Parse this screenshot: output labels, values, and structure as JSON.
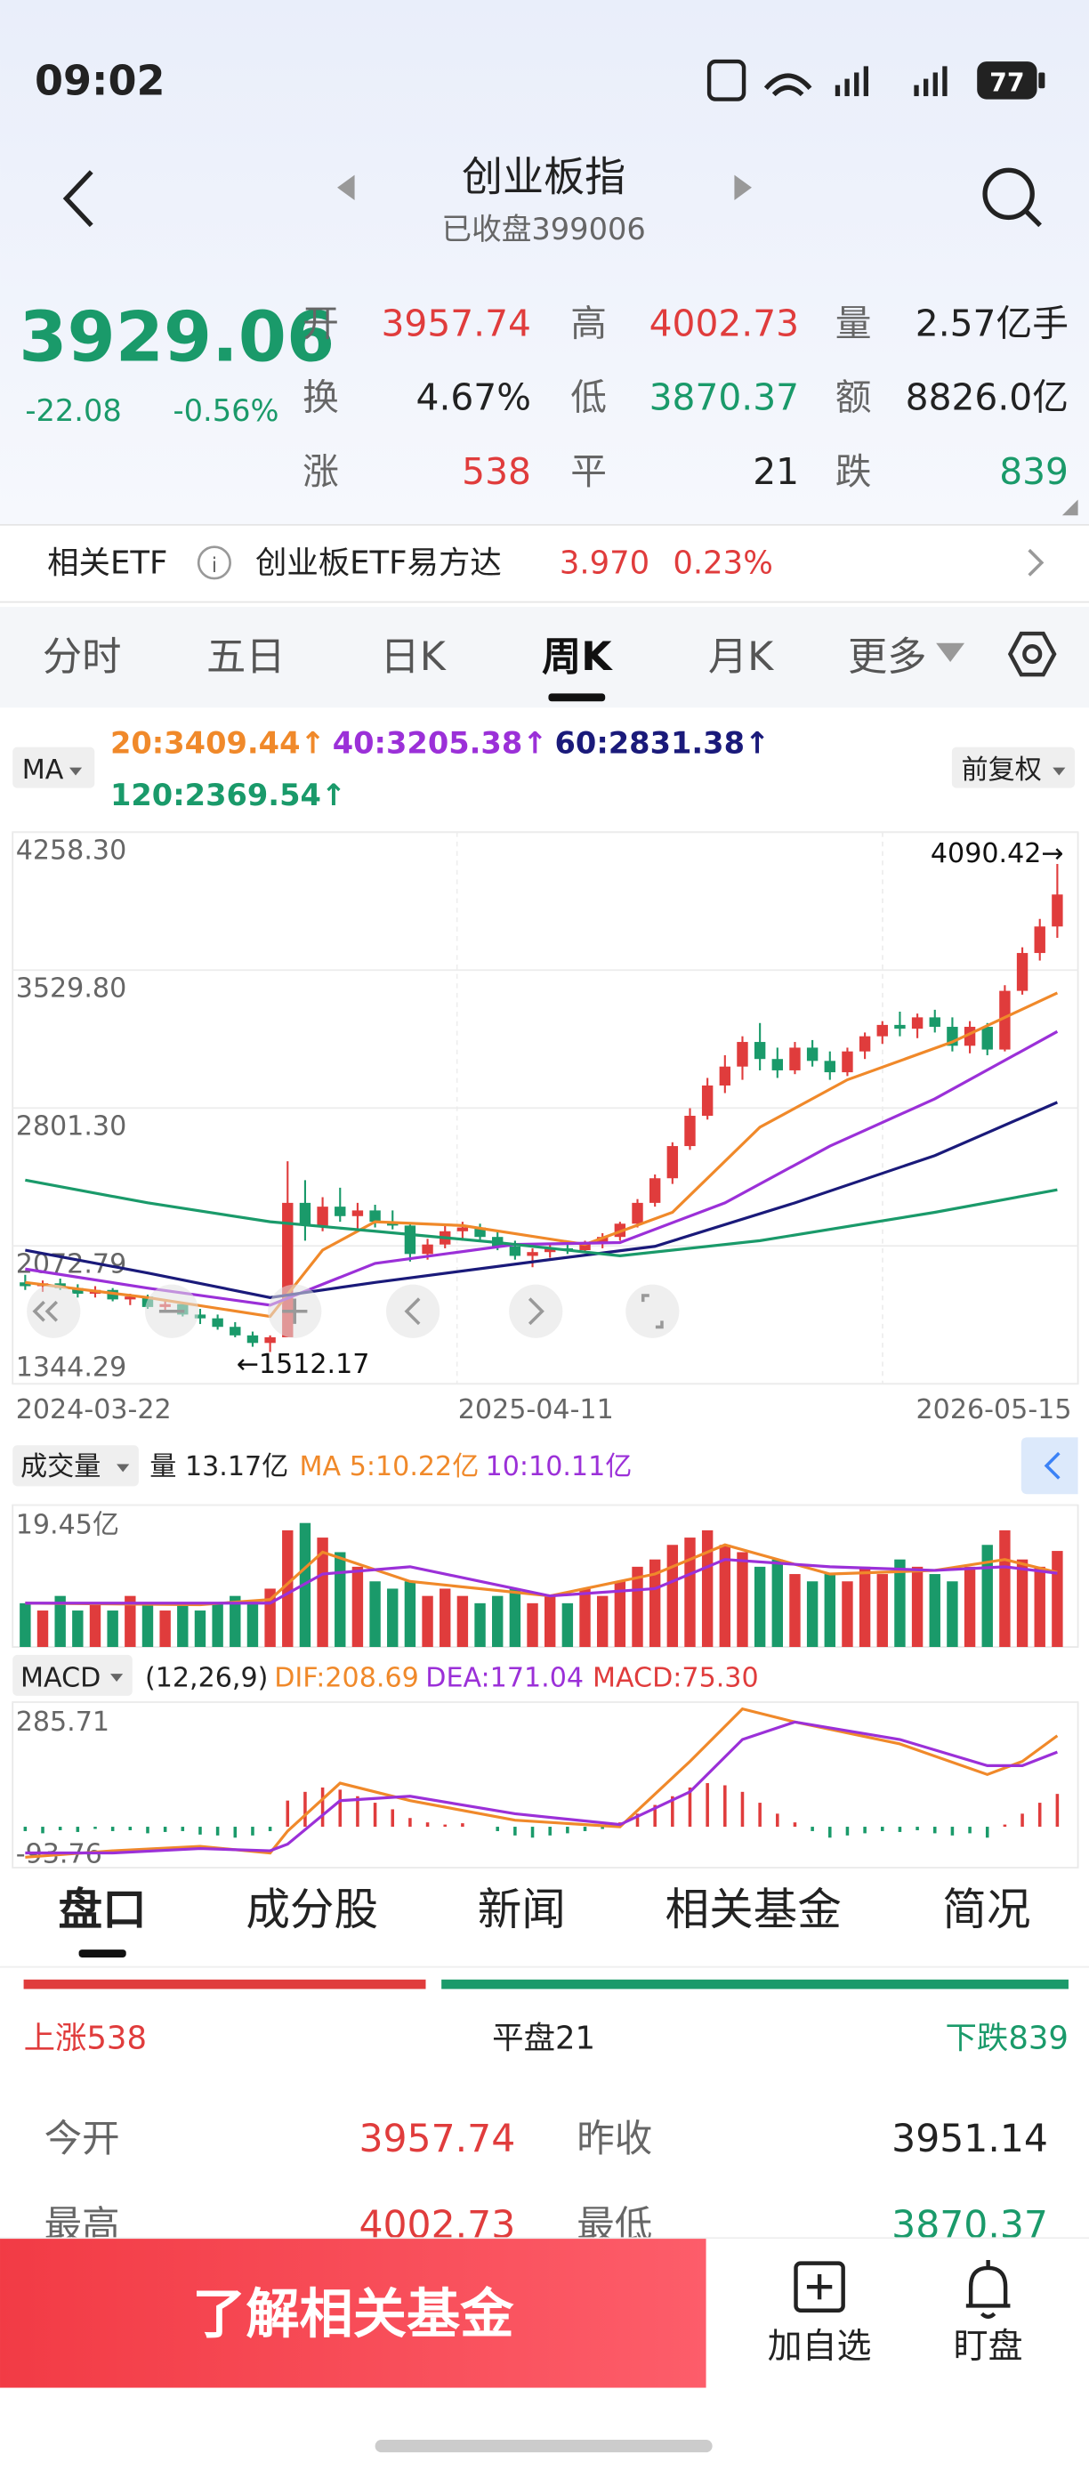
{
  "status": {
    "time": "09:02",
    "battery": "77"
  },
  "header": {
    "title": "创业板指",
    "subtitle": "已收盘399006"
  },
  "quote": {
    "price": "3929.06",
    "change": "-22.08",
    "change_pct": "-0.56%",
    "color": "#1a9a6a",
    "stats": [
      {
        "label": "开",
        "value": "3957.74",
        "color": "#e03c3c"
      },
      {
        "label": "高",
        "value": "4002.73",
        "color": "#e03c3c"
      },
      {
        "label": "量",
        "value": "2.57亿手",
        "color": "#222222"
      },
      {
        "label": "换",
        "value": "4.67%",
        "color": "#222222"
      },
      {
        "label": "低",
        "value": "3870.37",
        "color": "#1a9a6a"
      },
      {
        "label": "额",
        "value": "8826.0亿",
        "color": "#222222"
      },
      {
        "label": "涨",
        "value": "538",
        "color": "#e03c3c"
      },
      {
        "label": "平",
        "value": "21",
        "color": "#222222"
      },
      {
        "label": "跌",
        "value": "839",
        "color": "#1a9a6a"
      }
    ]
  },
  "etf": {
    "label": "相关ETF",
    "name": "创业板ETF易方达",
    "price": "3.970",
    "change_pct": "0.23%"
  },
  "period_tabs": {
    "items": [
      "分时",
      "五日",
      "日K",
      "周K",
      "月K",
      "更多"
    ],
    "active": 3
  },
  "chart_data": [
    {
      "type": "candlestick",
      "indicator": "MA",
      "adjustment": "前复权",
      "ylim": [
        1344.29,
        4258.3
      ],
      "yticks": [
        {
          "value": 4258.3,
          "label": "4258.30"
        },
        {
          "value": 3529.8,
          "label": "3529.80"
        },
        {
          "value": 2801.3,
          "label": "2801.30"
        },
        {
          "value": 2072.79,
          "label": "2072.79"
        },
        {
          "value": 1344.29,
          "label": "1344.29"
        }
      ],
      "x_labels": [
        "2024-03-22",
        "2025-04-11",
        "2026-05-15"
      ],
      "annotations": [
        "4090.42→",
        "←1512.17"
      ],
      "up_color": "#e03c3c",
      "down_color": "#1a9a6a",
      "candles": [
        [
          1880,
          1920,
          1840,
          1860
        ],
        [
          1860,
          1890,
          1830,
          1875
        ],
        [
          1875,
          1900,
          1840,
          1850
        ],
        [
          1850,
          1870,
          1800,
          1820
        ],
        [
          1820,
          1860,
          1800,
          1840
        ],
        [
          1840,
          1850,
          1780,
          1790
        ],
        [
          1790,
          1820,
          1760,
          1805
        ],
        [
          1805,
          1815,
          1740,
          1750
        ],
        [
          1750,
          1780,
          1720,
          1765
        ],
        [
          1765,
          1770,
          1700,
          1710
        ],
        [
          1710,
          1740,
          1660,
          1690
        ],
        [
          1690,
          1710,
          1630,
          1645
        ],
        [
          1645,
          1670,
          1590,
          1600
        ],
        [
          1600,
          1620,
          1540,
          1560
        ],
        [
          1560,
          1600,
          1512.17,
          1590
        ],
        [
          1590,
          2520,
          1590,
          2300
        ],
        [
          2300,
          2420,
          2100,
          2180
        ],
        [
          2180,
          2330,
          2150,
          2280
        ],
        [
          2280,
          2380,
          2200,
          2230
        ],
        [
          2230,
          2300,
          2150,
          2260
        ],
        [
          2260,
          2290,
          2170,
          2200
        ],
        [
          2200,
          2260,
          2160,
          2180
        ],
        [
          2180,
          2190,
          1990,
          2030
        ],
        [
          2030,
          2110,
          2000,
          2080
        ],
        [
          2080,
          2180,
          2060,
          2150
        ],
        [
          2150,
          2200,
          2100,
          2170
        ],
        [
          2170,
          2190,
          2100,
          2120
        ],
        [
          2120,
          2150,
          2050,
          2070
        ],
        [
          2070,
          2100,
          2000,
          2020
        ],
        [
          2020,
          2060,
          1960,
          2040
        ],
        [
          2040,
          2080,
          2010,
          2060
        ],
        [
          2060,
          2090,
          2030,
          2050
        ],
        [
          2050,
          2100,
          2040,
          2090
        ],
        [
          2090,
          2140,
          2060,
          2120
        ],
        [
          2120,
          2200,
          2100,
          2190
        ],
        [
          2190,
          2320,
          2170,
          2300
        ],
        [
          2300,
          2450,
          2280,
          2430
        ],
        [
          2430,
          2620,
          2400,
          2600
        ],
        [
          2600,
          2800,
          2580,
          2760
        ],
        [
          2760,
          2960,
          2740,
          2920
        ],
        [
          2920,
          3080,
          2880,
          3020
        ],
        [
          3020,
          3180,
          2950,
          3150
        ],
        [
          3150,
          3250,
          3000,
          3060
        ],
        [
          3060,
          3120,
          2960,
          3000
        ],
        [
          3000,
          3150,
          2980,
          3120
        ],
        [
          3120,
          3160,
          3020,
          3050
        ],
        [
          3050,
          3100,
          2950,
          2990
        ],
        [
          2990,
          3120,
          2970,
          3100
        ],
        [
          3100,
          3200,
          3060,
          3180
        ],
        [
          3180,
          3260,
          3140,
          3240
        ],
        [
          3240,
          3310,
          3180,
          3220
        ],
        [
          3220,
          3300,
          3170,
          3280
        ],
        [
          3280,
          3320,
          3200,
          3230
        ],
        [
          3230,
          3280,
          3100,
          3130
        ],
        [
          3130,
          3260,
          3090,
          3230
        ],
        [
          3230,
          3250,
          3080,
          3110
        ],
        [
          3110,
          3450,
          3100,
          3420
        ],
        [
          3420,
          3650,
          3400,
          3620
        ],
        [
          3620,
          3800,
          3580,
          3760
        ],
        [
          3760,
          4090.42,
          3700,
          3929.06
        ]
      ],
      "series": [
        {
          "name": "20:3409.44↑",
          "color": "#f0892a",
          "x": [
            0,
            7,
            14,
            17,
            20,
            25,
            32,
            37,
            42,
            47,
            53,
            59
          ],
          "values": [
            1880,
            1800,
            1700,
            2050,
            2200,
            2180,
            2080,
            2250,
            2700,
            2950,
            3150,
            3409.44
          ]
        },
        {
          "name": "40:3205.38↑",
          "color": "#9b30d8",
          "x": [
            0,
            7,
            14,
            20,
            28,
            34,
            40,
            46,
            52,
            59
          ],
          "values": [
            1950,
            1850,
            1760,
            1980,
            2080,
            2090,
            2300,
            2600,
            2850,
            3205.38
          ]
        },
        {
          "name": "60:2831.38↑",
          "color": "#1a1a7a",
          "x": [
            0,
            7,
            14,
            20,
            30,
            36,
            44,
            52,
            59
          ],
          "values": [
            2050,
            1930,
            1800,
            1880,
            2000,
            2070,
            2300,
            2550,
            2831.38
          ]
        },
        {
          "name": "120:2369.54↑",
          "color": "#1a9a6a",
          "x": [
            0,
            7,
            14,
            20,
            27,
            34,
            42,
            52,
            59
          ],
          "values": [
            2420,
            2300,
            2200,
            2150,
            2090,
            2020,
            2100,
            2250,
            2369.54
          ]
        }
      ]
    },
    {
      "type": "volume",
      "title": "成交量",
      "label": "量 13.17亿",
      "ylim": [
        0,
        19.45
      ],
      "yticks": [
        {
          "value": 19.45,
          "label": "19.45亿"
        }
      ],
      "values": [
        6,
        5,
        7,
        5,
        6,
        5,
        7,
        6,
        5,
        6,
        5,
        6,
        7,
        6,
        8,
        16,
        17,
        15,
        13,
        11,
        9,
        8,
        9,
        7,
        8,
        7,
        6,
        7,
        8,
        6,
        7,
        6,
        8,
        7,
        9,
        11,
        12,
        14,
        15,
        16,
        14,
        13,
        11,
        12,
        10,
        9,
        10,
        9,
        11,
        10,
        12,
        11,
        10,
        9,
        11,
        14,
        16,
        12,
        11,
        13.17
      ],
      "series": [
        {
          "name": "MA 5:10.22亿",
          "color": "#f0892a",
          "x": [
            0,
            10,
            14,
            17,
            22,
            30,
            36,
            40,
            46,
            52,
            56,
            59
          ],
          "values": [
            6,
            5.8,
            6.5,
            13,
            9,
            7,
            10,
            14,
            10,
            10.5,
            12,
            10.22
          ]
        },
        {
          "name": "10:10.11亿",
          "color": "#9b30d8",
          "x": [
            0,
            10,
            14,
            17,
            22,
            30,
            36,
            40,
            46,
            52,
            56,
            59
          ],
          "values": [
            6,
            6,
            6,
            10,
            11,
            7,
            8,
            12,
            11,
            10.5,
            11,
            10.11
          ]
        }
      ]
    },
    {
      "type": "macd",
      "title": "MACD",
      "params": "(12,26,9)",
      "histogram_label": "MACD:75.30",
      "ylim": [
        -93.76,
        285.71
      ],
      "yticks": [
        {
          "value": 285.71,
          "label": "285.71"
        },
        {
          "value": -93.76,
          "label": "-93.76"
        }
      ],
      "values": [
        -10,
        -15,
        -8,
        -12,
        -5,
        -10,
        -8,
        -15,
        -12,
        -10,
        -18,
        -20,
        -25,
        -20,
        -10,
        60,
        80,
        90,
        85,
        70,
        55,
        40,
        20,
        10,
        5,
        8,
        0,
        -10,
        -20,
        -25,
        -20,
        -15,
        -10,
        -5,
        10,
        30,
        50,
        70,
        90,
        100,
        95,
        80,
        55,
        30,
        10,
        -10,
        -25,
        -20,
        -15,
        -10,
        -12,
        -8,
        -15,
        -20,
        -15,
        -25,
        5,
        30,
        55,
        75.3
      ],
      "series": [
        {
          "name": "DIF:208.69",
          "color": "#f0892a",
          "x": [
            0,
            5,
            10,
            14,
            15,
            18,
            22,
            28,
            34,
            38,
            41,
            44,
            50,
            55,
            57,
            59
          ],
          "values": [
            -70,
            -55,
            -45,
            -60,
            -10,
            100,
            60,
            15,
            0,
            150,
            270,
            240,
            190,
            120,
            150,
            208.69
          ]
        },
        {
          "name": "DEA:171.04",
          "color": "#9b30d8",
          "x": [
            0,
            5,
            10,
            14,
            15,
            18,
            22,
            28,
            34,
            38,
            41,
            44,
            50,
            55,
            57,
            59
          ],
          "values": [
            -60,
            -60,
            -50,
            -55,
            -40,
            60,
            70,
            30,
            5,
            80,
            200,
            240,
            200,
            140,
            140,
            171.04
          ]
        }
      ]
    }
  ],
  "detail_tabs": {
    "items": [
      "盘口",
      "成分股",
      "新闻",
      "相关基金",
      "简况"
    ],
    "active": 0
  },
  "breadth": {
    "up_label": "上涨",
    "up": 538,
    "flat_label": "平盘",
    "flat": 21,
    "down_label": "下跌",
    "down": 839
  },
  "quote_table": {
    "rows": [
      [
        "今开",
        "3957.74",
        "昨收",
        "3951.14"
      ],
      [
        "最高",
        "4002.73",
        "最低",
        "3870.37"
      ]
    ],
    "value_colors": [
      [
        "#e03c3c",
        "#222222"
      ],
      [
        "#e03c3c",
        "#1a9a6a"
      ]
    ]
  },
  "bottom_bar": {
    "button": "了解相关基金",
    "actions": [
      "加自选",
      "盯盘"
    ]
  }
}
